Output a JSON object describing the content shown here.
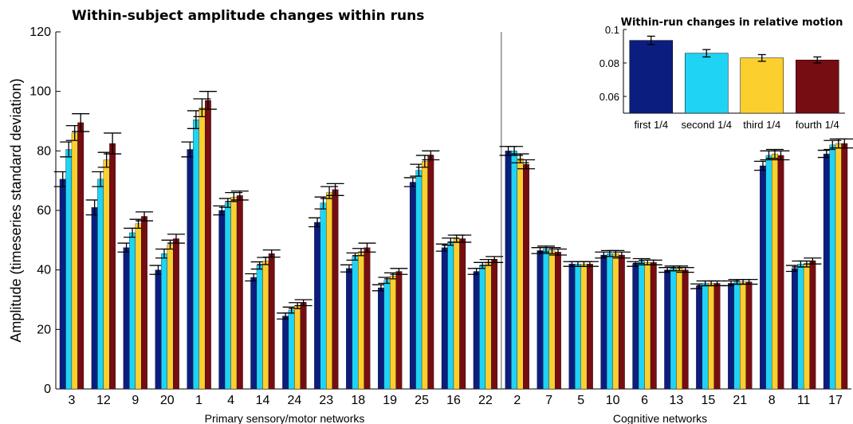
{
  "chart_data": [
    {
      "type": "bar",
      "title": "Within-subject amplitude changes within runs",
      "ylabel": "Amplitude (timeseries standard deviation)",
      "ylim": [
        0,
        120
      ],
      "yticks": [
        0,
        20,
        40,
        60,
        80,
        100,
        120
      ],
      "categories": [
        "3",
        "12",
        "9",
        "20",
        "1",
        "4",
        "14",
        "24",
        "23",
        "18",
        "19",
        "25",
        "16",
        "22",
        "2",
        "7",
        "5",
        "10",
        "6",
        "13",
        "15",
        "21",
        "8",
        "11",
        "17"
      ],
      "groups": [
        {
          "label": "Primary sensory/motor networks",
          "count": 14
        },
        {
          "label": "Cognitive networks",
          "count": 11
        }
      ],
      "series": [
        {
          "color": "#0b1e80",
          "values": [
            70.5,
            61,
            47.5,
            40,
            80.5,
            60,
            37.5,
            24.5,
            56,
            40.5,
            34,
            69.5,
            47.5,
            39.5,
            80,
            46.5,
            42,
            45,
            42,
            40,
            34.5,
            35.5,
            75,
            40.5,
            79
          ],
          "errors": [
            2.5,
            2.5,
            1.5,
            1.5,
            2.5,
            1.5,
            1.2,
            1,
            1.5,
            1.2,
            1,
            1.5,
            1.2,
            1,
            1.5,
            1,
            0.8,
            1,
            0.8,
            0.8,
            0.8,
            0.8,
            1.5,
            1,
            1.2
          ]
        },
        {
          "color": "#1fd3f5",
          "values": [
            80.5,
            70.5,
            52.5,
            45.5,
            90.5,
            62.5,
            41.5,
            26.5,
            62.5,
            44.5,
            36.5,
            73.5,
            49.5,
            41.5,
            80,
            47,
            42,
            45.5,
            43,
            40.5,
            35.5,
            36,
            78.5,
            42,
            82
          ],
          "errors": [
            2.5,
            2.5,
            1.5,
            1.5,
            3,
            1.5,
            1.2,
            1,
            2,
            1.2,
            1,
            2,
            1.2,
            1,
            1.5,
            1,
            0.8,
            1,
            0.8,
            0.8,
            0.8,
            0.8,
            1.5,
            1,
            1.5
          ]
        },
        {
          "color": "#fbcf2e",
          "values": [
            86,
            77,
            55.5,
            48.5,
            94.5,
            64.5,
            43,
            28,
            66,
            46,
            38,
            76.5,
            50.5,
            42.5,
            77.5,
            46.5,
            42,
            45.5,
            42.5,
            40.5,
            35.5,
            36,
            79,
            42,
            82.5
          ],
          "errors": [
            2.5,
            2.5,
            1.5,
            1.5,
            3,
            1.5,
            1.2,
            1,
            2,
            1.2,
            1,
            2,
            1.2,
            1,
            1.5,
            1,
            0.8,
            1,
            0.8,
            0.8,
            0.8,
            0.8,
            1.5,
            1,
            1.5
          ]
        },
        {
          "color": "#760d13",
          "values": [
            89.5,
            82.5,
            58,
            50.5,
            97,
            65,
            45.5,
            29,
            67,
            47.5,
            39.5,
            78.5,
            50.5,
            43.5,
            75.5,
            46,
            42,
            45,
            42.5,
            40,
            35.5,
            36,
            78.5,
            43,
            82.5
          ],
          "errors": [
            3,
            3.5,
            1.5,
            1.5,
            3,
            1.5,
            1.2,
            1,
            2,
            1.5,
            1,
            1.5,
            1.2,
            1,
            1.5,
            1,
            0.8,
            1,
            0.8,
            0.8,
            0.8,
            0.8,
            1.5,
            1,
            1.5
          ]
        }
      ]
    },
    {
      "type": "bar",
      "title": "Within-run changes in relative motion",
      "ylim": [
        0.05,
        0.1
      ],
      "yticks": [
        "0.06",
        "0.08",
        "0.1"
      ],
      "categories": [
        "first 1/4",
        "second 1/4",
        "third 1/4",
        "fourth 1/4"
      ],
      "colors": [
        "#0b1e80",
        "#1fd3f5",
        "#fbcf2e",
        "#760d13"
      ],
      "values": [
        0.0935,
        0.0858,
        0.083,
        0.0818
      ],
      "errors": [
        0.0025,
        0.0022,
        0.002,
        0.0018
      ]
    }
  ]
}
